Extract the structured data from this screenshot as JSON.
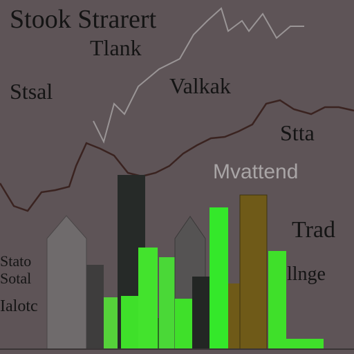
{
  "labels": {
    "title": "Stook Strarert",
    "subtitle": "Tlank",
    "left_top": "Stsal",
    "middle": "Valkak",
    "right_upper": "Stta",
    "right_gray": "Mvattend",
    "right_lower": "Trad",
    "left_small_1": "Stato",
    "left_small_2": "Sotal",
    "left_small_3": "Ialotc",
    "right_small": "llnge"
  }
}
